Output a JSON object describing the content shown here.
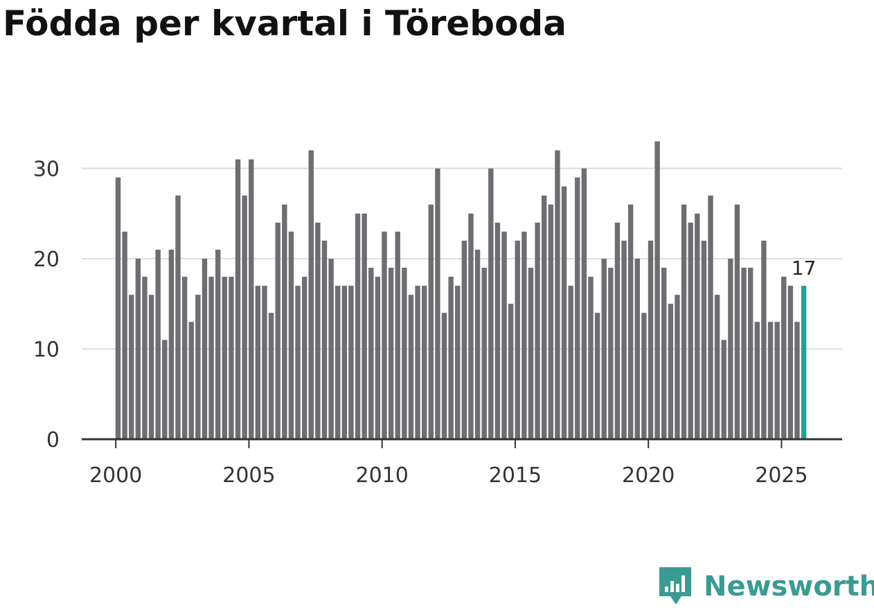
{
  "title": "Födda per kvartal i Töreboda",
  "brand": {
    "name": "Newsworthy",
    "icon": "bar-chart-speech-bubble-icon",
    "color": "#3a9b93"
  },
  "colors": {
    "bar": "#6d6d72",
    "highlight": "#1aa39a",
    "grid": "#dddddd",
    "axis": "#333333"
  },
  "chart_data": {
    "type": "bar",
    "title": "Födda per kvartal i Töreboda",
    "xlabel": "",
    "ylabel": "",
    "ylim": [
      0,
      35
    ],
    "yticks": [
      0,
      10,
      20,
      30
    ],
    "xticks": [
      "2000",
      "2005",
      "2010",
      "2015",
      "2020",
      "2025"
    ],
    "grid": "horizontal",
    "start": "2000 Q1",
    "end": "2025 Q4",
    "highlight": {
      "category": "2025 Q4",
      "label": "17"
    },
    "categories": [
      "2000 Q1",
      "2000 Q2",
      "2000 Q3",
      "2000 Q4",
      "2001 Q1",
      "2001 Q2",
      "2001 Q3",
      "2001 Q4",
      "2002 Q1",
      "2002 Q2",
      "2002 Q3",
      "2002 Q4",
      "2003 Q1",
      "2003 Q2",
      "2003 Q3",
      "2003 Q4",
      "2004 Q1",
      "2004 Q2",
      "2004 Q3",
      "2004 Q4",
      "2005 Q1",
      "2005 Q2",
      "2005 Q3",
      "2005 Q4",
      "2006 Q1",
      "2006 Q2",
      "2006 Q3",
      "2006 Q4",
      "2007 Q1",
      "2007 Q2",
      "2007 Q3",
      "2007 Q4",
      "2008 Q1",
      "2008 Q2",
      "2008 Q3",
      "2008 Q4",
      "2009 Q1",
      "2009 Q2",
      "2009 Q3",
      "2009 Q4",
      "2010 Q1",
      "2010 Q2",
      "2010 Q3",
      "2010 Q4",
      "2011 Q1",
      "2011 Q2",
      "2011 Q3",
      "2011 Q4",
      "2012 Q1",
      "2012 Q2",
      "2012 Q3",
      "2012 Q4",
      "2013 Q1",
      "2013 Q2",
      "2013 Q3",
      "2013 Q4",
      "2014 Q1",
      "2014 Q2",
      "2014 Q3",
      "2014 Q4",
      "2015 Q1",
      "2015 Q2",
      "2015 Q3",
      "2015 Q4",
      "2016 Q1",
      "2016 Q2",
      "2016 Q3",
      "2016 Q4",
      "2017 Q1",
      "2017 Q2",
      "2017 Q3",
      "2017 Q4",
      "2018 Q1",
      "2018 Q2",
      "2018 Q3",
      "2018 Q4",
      "2019 Q1",
      "2019 Q2",
      "2019 Q3",
      "2019 Q4",
      "2020 Q1",
      "2020 Q2",
      "2020 Q3",
      "2020 Q4",
      "2021 Q1",
      "2021 Q2",
      "2021 Q3",
      "2021 Q4",
      "2022 Q1",
      "2022 Q2",
      "2022 Q3",
      "2022 Q4",
      "2023 Q1",
      "2023 Q2",
      "2023 Q3",
      "2023 Q4",
      "2024 Q1",
      "2024 Q2",
      "2024 Q3",
      "2024 Q4",
      "2025 Q1",
      "2025 Q2",
      "2025 Q3",
      "2025 Q4"
    ],
    "values": [
      29,
      23,
      16,
      20,
      18,
      16,
      21,
      11,
      21,
      27,
      18,
      13,
      16,
      20,
      18,
      21,
      18,
      18,
      31,
      27,
      31,
      17,
      17,
      14,
      24,
      26,
      23,
      17,
      18,
      32,
      24,
      22,
      20,
      17,
      17,
      17,
      25,
      25,
      19,
      18,
      23,
      19,
      23,
      19,
      16,
      17,
      17,
      26,
      30,
      14,
      18,
      17,
      22,
      25,
      21,
      19,
      30,
      24,
      23,
      15,
      22,
      23,
      19,
      24,
      27,
      26,
      32,
      28,
      17,
      29,
      30,
      18,
      14,
      20,
      19,
      24,
      22,
      26,
      20,
      14,
      22,
      33,
      19,
      15,
      16,
      26,
      24,
      25,
      22,
      27,
      16,
      11,
      20,
      26,
      19,
      19,
      13,
      22,
      13,
      13,
      18,
      17,
      13,
      17
    ]
  }
}
